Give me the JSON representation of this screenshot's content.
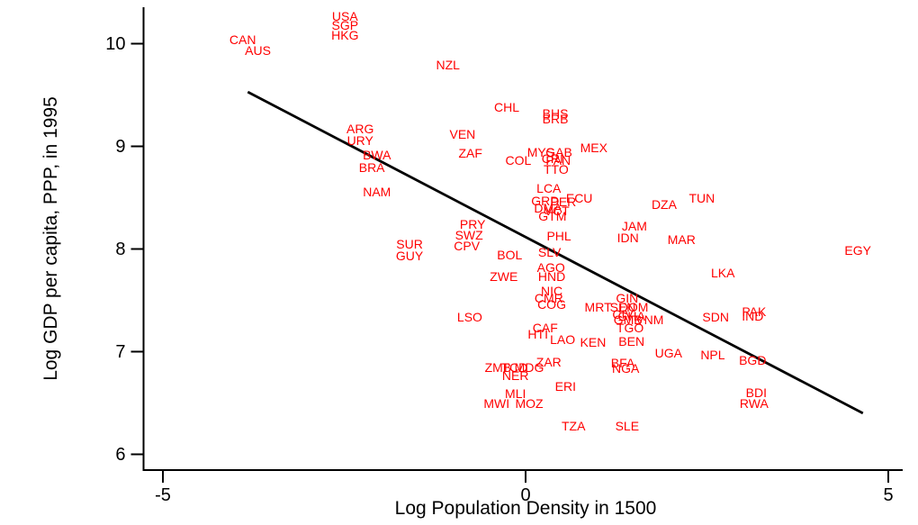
{
  "chart_data": {
    "type": "scatter",
    "marker_style": "country-code-text-labels",
    "title": "",
    "xlabel": "Log Population Density in 1500",
    "ylabel": "Log GDP per capita, PPP, in 1995",
    "xlim": [
      -5.3,
      5.2
    ],
    "ylim": [
      5.95,
      10.35
    ],
    "x_ticks": [
      -5,
      0,
      5
    ],
    "y_ticks": [
      6,
      7,
      8,
      9,
      10
    ],
    "grid": "off",
    "legend": "none",
    "label_color": "#ff0000",
    "axis_color": "#000000",
    "trend_line_color": "#000000",
    "trend_line": {
      "x1": -3.83,
      "y1": 9.53,
      "x2": 4.65,
      "y2": 6.4
    },
    "points_format": [
      "country_code",
      "log_pop_density_1500",
      "log_gdp_pc_ppp_1995"
    ],
    "points": [
      [
        "USA",
        -2.49,
        10.27
      ],
      [
        "SGP",
        -2.49,
        10.18
      ],
      [
        "HKG",
        -2.49,
        10.08
      ],
      [
        "CAN",
        -3.9,
        10.04
      ],
      [
        "AUS",
        -3.69,
        9.93
      ],
      [
        "NZL",
        -1.07,
        9.79
      ],
      [
        "CHL",
        -0.26,
        9.38
      ],
      [
        "BHS",
        0.41,
        9.32
      ],
      [
        "BRB",
        0.41,
        9.27
      ],
      [
        "ARG",
        -2.28,
        9.17
      ],
      [
        "URY",
        -2.28,
        9.06
      ],
      [
        "VEN",
        -0.87,
        9.12
      ],
      [
        "MEX",
        0.94,
        8.99
      ],
      [
        "BWA",
        -2.05,
        8.92
      ],
      [
        "ZAF",
        -0.76,
        8.93
      ],
      [
        "MYS",
        0.21,
        8.94
      ],
      [
        "GAB",
        0.46,
        8.94
      ],
      [
        "CRI",
        0.37,
        8.88
      ],
      [
        "COL",
        -0.1,
        8.86
      ],
      [
        "PAN",
        0.45,
        8.86
      ],
      [
        "BRA",
        -2.12,
        8.79
      ],
      [
        "TTO",
        0.42,
        8.78
      ],
      [
        "NAM",
        -2.05,
        8.56
      ],
      [
        "LCA",
        0.32,
        8.59
      ],
      [
        "ECU",
        0.74,
        8.5
      ],
      [
        "TUN",
        2.43,
        8.5
      ],
      [
        "GRD",
        0.27,
        8.47
      ],
      [
        "PER",
        0.52,
        8.46
      ],
      [
        "DZA",
        1.91,
        8.43
      ],
      [
        "DMA",
        0.31,
        8.4
      ],
      [
        "VCT",
        0.43,
        8.37
      ],
      [
        "GTM",
        0.37,
        8.32
      ],
      [
        "JAM",
        1.5,
        8.22
      ],
      [
        "PRY",
        -0.73,
        8.24
      ],
      [
        "SWZ",
        -0.78,
        8.14
      ],
      [
        "IDN",
        1.41,
        8.11
      ],
      [
        "PHL",
        0.46,
        8.13
      ],
      [
        "MAR",
        2.15,
        8.09
      ],
      [
        "SUR",
        -1.6,
        8.05
      ],
      [
        "GUY",
        -1.6,
        7.93
      ],
      [
        "CPV",
        -0.81,
        8.03
      ],
      [
        "BOL",
        -0.22,
        7.94
      ],
      [
        "SLV",
        0.33,
        7.97
      ],
      [
        "EGY",
        4.58,
        7.99
      ],
      [
        "AGO",
        0.35,
        7.82
      ],
      [
        "LKA",
        2.72,
        7.77
      ],
      [
        "ZWE",
        -0.3,
        7.73
      ],
      [
        "HND",
        0.36,
        7.73
      ],
      [
        "NIC",
        0.36,
        7.59
      ],
      [
        "CMR",
        0.32,
        7.52
      ],
      [
        "COG",
        0.36,
        7.46
      ],
      [
        "GIN",
        1.4,
        7.52
      ],
      [
        "MRT",
        1.0,
        7.43
      ],
      [
        "SEN",
        1.34,
        7.43
      ],
      [
        "DOM",
        1.49,
        7.43
      ],
      [
        "CIV",
        1.34,
        7.36
      ],
      [
        "GHA",
        1.46,
        7.35
      ],
      [
        "LSO",
        -0.77,
        7.34
      ],
      [
        "GMB",
        1.41,
        7.31
      ],
      [
        "VNM",
        1.71,
        7.31
      ],
      [
        "SDN",
        2.62,
        7.34
      ],
      [
        "PAK",
        3.15,
        7.39
      ],
      [
        "IND",
        3.13,
        7.35
      ],
      [
        "TGO",
        1.44,
        7.23
      ],
      [
        "CAF",
        0.27,
        7.23
      ],
      [
        "HTI",
        0.17,
        7.17
      ],
      [
        "LAO",
        0.51,
        7.12
      ],
      [
        "KEN",
        0.93,
        7.09
      ],
      [
        "BEN",
        1.46,
        7.1
      ],
      [
        "UGA",
        1.97,
        6.99
      ],
      [
        "NPL",
        2.58,
        6.97
      ],
      [
        "BGD",
        3.13,
        6.92
      ],
      [
        "ZAR",
        0.32,
        6.9
      ],
      [
        "TCD",
        -0.15,
        6.85
      ],
      [
        "MDG",
        0.05,
        6.85
      ],
      [
        "ZMB",
        -0.38,
        6.85
      ],
      [
        "BFA",
        1.34,
        6.89
      ],
      [
        "NGA",
        1.38,
        6.84
      ],
      [
        "NER",
        -0.14,
        6.77
      ],
      [
        "ERI",
        0.55,
        6.66
      ],
      [
        "MLI",
        -0.14,
        6.59
      ],
      [
        "MWI",
        -0.4,
        6.5
      ],
      [
        "MOZ",
        0.05,
        6.5
      ],
      [
        "BDI",
        3.18,
        6.6
      ],
      [
        "RWA",
        3.15,
        6.5
      ],
      [
        "TZA",
        0.66,
        6.28
      ],
      [
        "SLE",
        1.4,
        6.28
      ]
    ]
  }
}
